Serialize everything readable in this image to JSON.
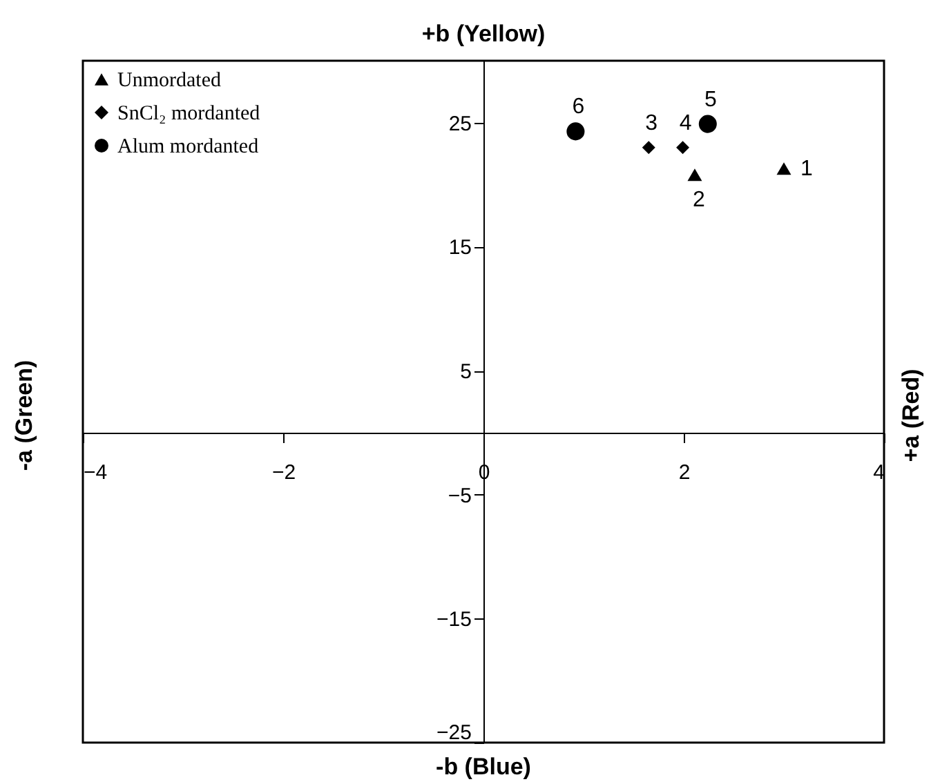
{
  "chart_data": {
    "type": "scatter",
    "title": "+b (Yellow)",
    "xlabel": "-b (Blue)",
    "ylabel": "-a (Green)",
    "y2label": "+a (Red)",
    "xlim": [
      -4,
      4
    ],
    "xticks": [
      -4,
      -2,
      0,
      2,
      4
    ],
    "ylim": [
      -25,
      30
    ],
    "yticks": [
      -25,
      -15,
      -5,
      5,
      15,
      25
    ],
    "grid": false,
    "legend": "top left",
    "series": [
      {
        "name": "Unmordated",
        "color": "#000000",
        "marker": "triangle",
        "x": [
          3.0,
          2.11
        ],
        "values": [
          21.3,
          20.8
        ]
      },
      {
        "name": "SnCl₂ mordanted",
        "color": "#000000",
        "marker": "diamond",
        "x": [
          1.65,
          1.99
        ],
        "values": [
          23.0,
          23.0
        ]
      },
      {
        "name": "Alum mordanted",
        "color": "#000000",
        "marker": "circle",
        "x": [
          2.24,
          0.92
        ],
        "values": [
          24.9,
          24.3
        ]
      }
    ],
    "annotations": [
      {
        "text": "1",
        "x": 3.0,
        "y": 21.3
      },
      {
        "text": "2",
        "x": 2.11,
        "y": 20.8
      },
      {
        "text": "3",
        "x": 1.65,
        "y": 23.0
      },
      {
        "text": "4",
        "x": 1.99,
        "y": 23.0
      },
      {
        "text": "5",
        "x": 2.24,
        "y": 24.9
      },
      {
        "text": "6",
        "x": 0.92,
        "y": 24.3
      }
    ]
  }
}
